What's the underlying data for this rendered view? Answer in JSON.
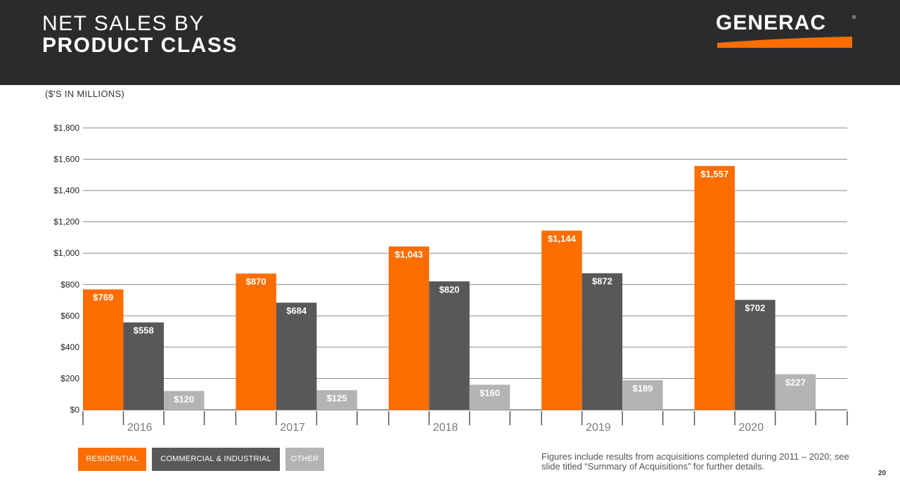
{
  "header": {
    "title_line1": "NET SALES BY",
    "title_line2": "PRODUCT CLASS",
    "logo_text": "GENERAC",
    "logo_reg": "®"
  },
  "subtitle": "($'S IN MILLIONS)",
  "chart_data": {
    "type": "bar",
    "title": "NET SALES BY PRODUCT CLASS",
    "ylabel": "($'S IN MILLIONS)",
    "xlabel": "",
    "categories": [
      "2016",
      "2017",
      "2018",
      "2019",
      "2020"
    ],
    "series": [
      {
        "name": "RESIDENTIAL",
        "color": "#fe6d00",
        "values": [
          769,
          870,
          1043,
          1144,
          1557
        ],
        "labels": [
          "$769",
          "$870",
          "$1,043",
          "$1,144",
          "$1,557"
        ]
      },
      {
        "name": "COMMERCIAL & INDUSTRIAL",
        "color": "#58585a",
        "values": [
          558,
          684,
          820,
          872,
          702
        ],
        "labels": [
          "$558",
          "$684",
          "$820",
          "$872",
          "$702"
        ]
      },
      {
        "name": "OTHER",
        "color": "#b3b4b6",
        "values": [
          120,
          125,
          160,
          189,
          227
        ],
        "labels": [
          "$120",
          "$125",
          "$160",
          "$189",
          "$227"
        ]
      }
    ],
    "ylim": [
      0,
      1800
    ],
    "yticks": [
      0,
      200,
      400,
      600,
      800,
      1000,
      1200,
      1400,
      1600,
      1800
    ],
    "ytick_labels": [
      "$0",
      "$200",
      "$400",
      "$600",
      "$800",
      "$1,000",
      "$1,200",
      "$1,400",
      "$1,600",
      "$1,800"
    ],
    "grid": true,
    "legend_position": "bottom-left"
  },
  "legend": [
    {
      "label": "RESIDENTIAL",
      "color": "#fe6d00"
    },
    {
      "label": "COMMERCIAL & INDUSTRIAL",
      "color": "#58585a"
    },
    {
      "label": "OTHER",
      "color": "#b3b4b6"
    }
  ],
  "note": "Figures include results from acquisitions completed during 2011 – 2020; see slide titled “Summary of Acquisitions” for further details.",
  "page_number": "20",
  "colors": {
    "header_bg": "#2b2b2d",
    "accent": "#fe6d00"
  }
}
